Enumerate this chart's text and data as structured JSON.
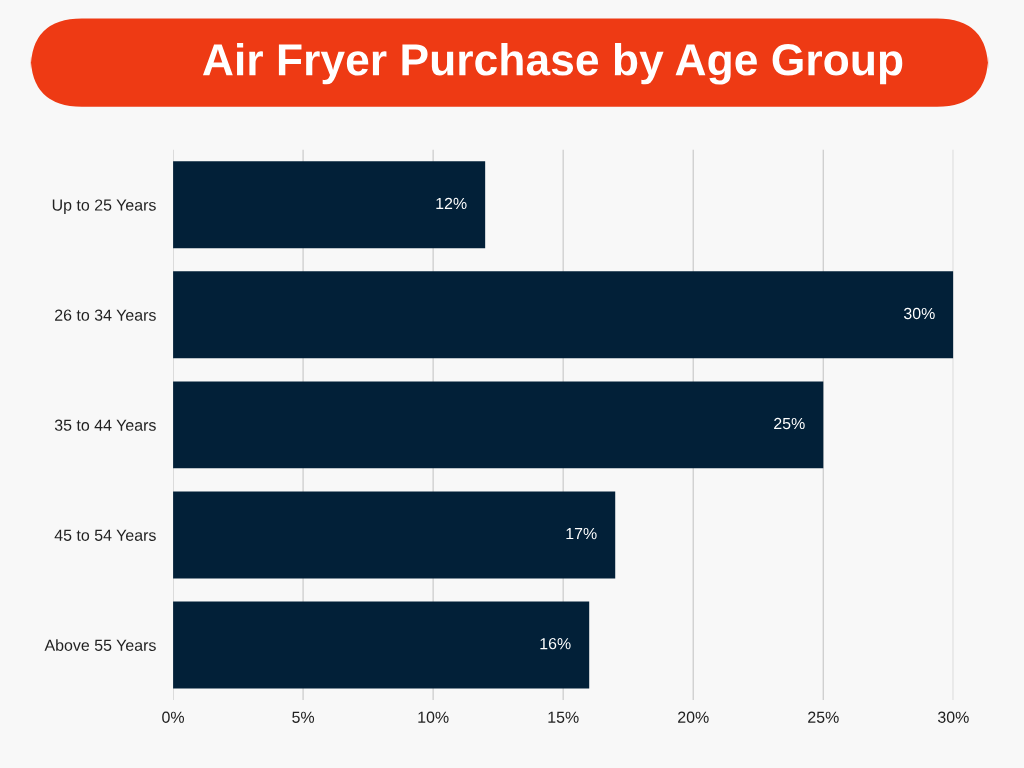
{
  "chart_data": {
    "type": "bar",
    "orientation": "horizontal",
    "title": "Air Fryer Purchase by Age Group",
    "categories": [
      "Up to 25 Years",
      "26 to 34 Years",
      "35 to 44 Years",
      "45 to 54 Years",
      "Above 55 Years"
    ],
    "values": [
      12,
      30,
      25,
      17,
      16
    ],
    "value_labels": [
      "12%",
      "30%",
      "25%",
      "17%",
      "16%"
    ],
    "color": "#022038",
    "xlim": [
      0,
      30
    ],
    "xticks": [
      {
        "value": 0,
        "label": "0%"
      },
      {
        "value": 5,
        "label": "5%"
      },
      {
        "value": 10,
        "label": "10%"
      },
      {
        "value": 15,
        "label": "15%"
      },
      {
        "value": 20,
        "label": "20%"
      },
      {
        "value": 25,
        "label": "25%"
      },
      {
        "value": 30,
        "label": "30%"
      }
    ],
    "grid": "x",
    "legend": false
  }
}
